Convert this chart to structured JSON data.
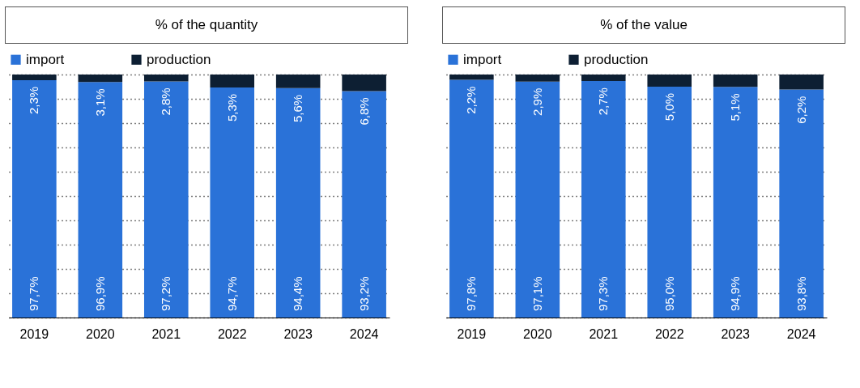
{
  "chart_data": [
    {
      "type": "bar",
      "title": "% of the quantity",
      "stacked": true,
      "categories": [
        "2019",
        "2020",
        "2021",
        "2022",
        "2023",
        "2024"
      ],
      "ylim": [
        0,
        100
      ],
      "tick_labels": "x",
      "grid": "y",
      "legend": "top",
      "series": [
        {
          "name": "import",
          "color": "#2a72d8",
          "values": [
            97.7,
            96.9,
            97.2,
            94.7,
            94.4,
            93.2
          ],
          "value_labels": [
            "97,7%",
            "96,9%",
            "97,2%",
            "94,7%",
            "94,4%",
            "93,2%"
          ]
        },
        {
          "name": "production",
          "color": "#0d1f33",
          "values": [
            2.3,
            3.1,
            2.8,
            5.3,
            5.6,
            6.8
          ],
          "value_labels": [
            "2,3%",
            "3,1%",
            "2,8%",
            "5,3%",
            "5,6%",
            "6,8%"
          ]
        }
      ]
    },
    {
      "type": "bar",
      "title": "% of the value",
      "stacked": true,
      "categories": [
        "2019",
        "2020",
        "2021",
        "2022",
        "2023",
        "2024"
      ],
      "ylim": [
        0,
        100
      ],
      "tick_labels": "x",
      "grid": "y",
      "legend": "top",
      "series": [
        {
          "name": "import",
          "color": "#2a72d8",
          "values": [
            97.8,
            97.1,
            97.3,
            95.0,
            94.9,
            93.8
          ],
          "value_labels": [
            "97,8%",
            "97,1%",
            "97,3%",
            "95,0%",
            "94,9%",
            "93,8%"
          ]
        },
        {
          "name": "production",
          "color": "#0d1f33",
          "values": [
            2.2,
            2.9,
            2.7,
            5.0,
            5.1,
            6.2
          ],
          "value_labels": [
            "2,2%",
            "2,9%",
            "2,7%",
            "5,0%",
            "5,1%",
            "6,2%"
          ]
        }
      ]
    }
  ]
}
